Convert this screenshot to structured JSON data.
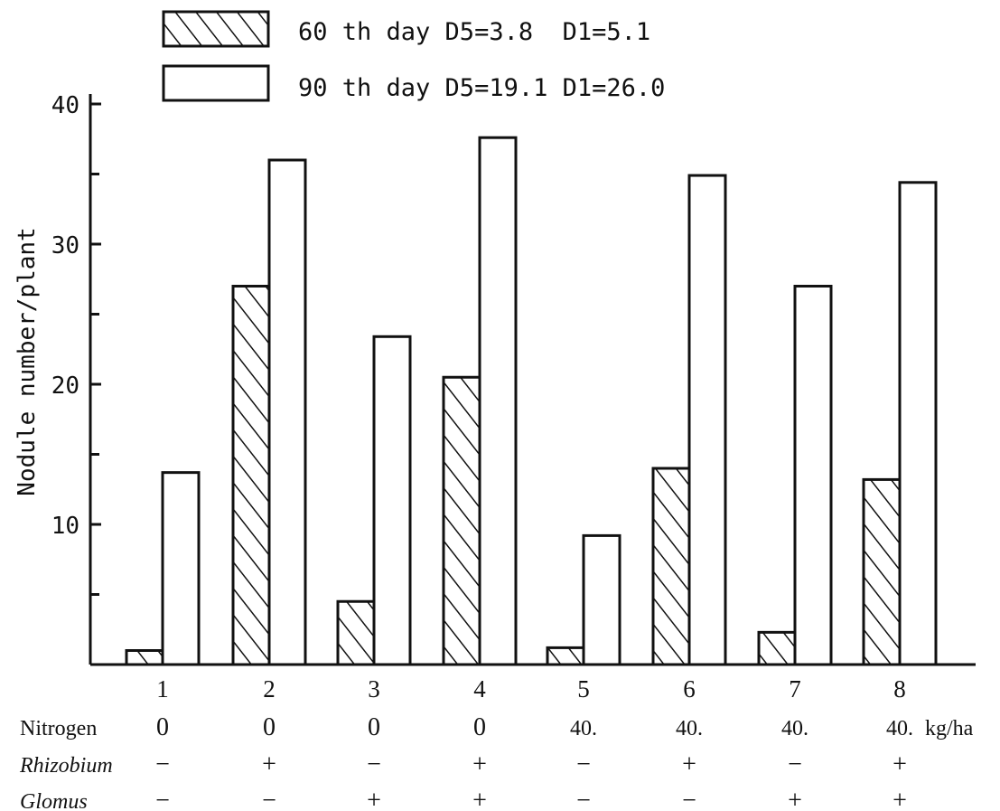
{
  "chart_data": {
    "type": "bar",
    "categories": [
      "1",
      "2",
      "3",
      "4",
      "5",
      "6",
      "7",
      "8"
    ],
    "series": [
      {
        "name": "60 th day D5=3.8  D1=5.1",
        "pattern": "hatched",
        "values": [
          1.0,
          27.0,
          4.5,
          20.5,
          1.2,
          14.0,
          2.3,
          13.2
        ]
      },
      {
        "name": "90 th day D5=19.1 D1=26.0",
        "pattern": "open",
        "values": [
          13.7,
          36.0,
          23.4,
          37.6,
          9.2,
          34.9,
          27.0,
          34.4
        ]
      }
    ],
    "ylabel": "Nodule number/plant",
    "ylim": [
      0,
      40
    ],
    "yticks": [
      "10",
      "20",
      "30",
      "40"
    ],
    "grid": false,
    "legend_position": "top",
    "treatments": [
      {
        "label": "Nitrogen",
        "values": [
          "0",
          "0",
          "0",
          "0",
          "40.",
          "40.",
          "40.",
          "40."
        ],
        "unit": "kg/ha"
      },
      {
        "label": "Rhizobium",
        "values": [
          "−",
          "+",
          "−",
          "+",
          "−",
          "+",
          "−",
          "+"
        ],
        "unit": ""
      },
      {
        "label": "Glomus",
        "values": [
          "−",
          "−",
          "+",
          "+",
          "−",
          "−",
          "+",
          "+"
        ],
        "unit": ""
      }
    ],
    "colors": {
      "ink": "#111111",
      "background": "#ffffff"
    }
  }
}
